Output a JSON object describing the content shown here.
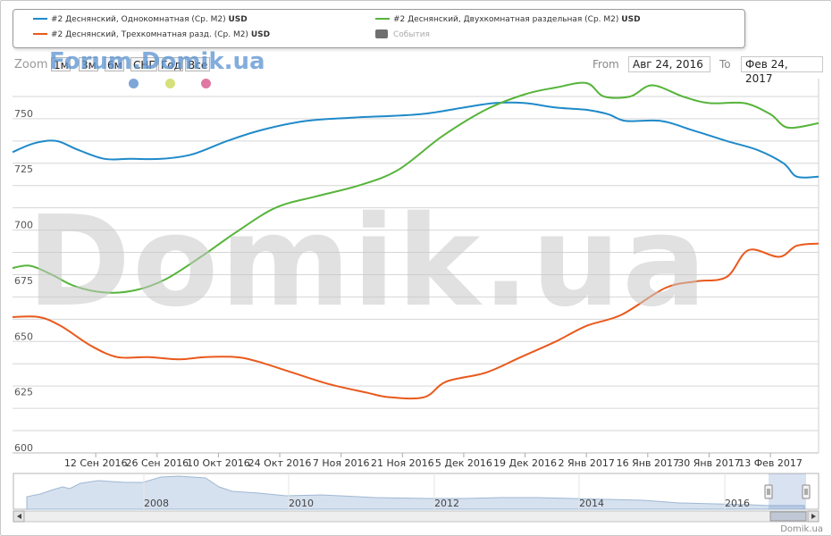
{
  "legend": {
    "items": [
      {
        "label": "#2 Деснянский, Однокомнатная (Ср. М2)",
        "unit": "USD",
        "color": "#1f8ac9"
      },
      {
        "label": "#2 Деснянский, Двухкомнатная раздельная (Ср. М2)",
        "unit": "USD",
        "color": "#56b43a"
      },
      {
        "label": "#2 Деснянский, Трехкомнатная разд. (Ср. М2)",
        "unit": "USD",
        "color": "#e9591c"
      },
      {
        "label": "События",
        "unit": "",
        "color": "#6f6f6f"
      }
    ]
  },
  "zoom": {
    "label": "Zoom",
    "buttons": [
      "1м",
      "3м",
      "6м",
      "СНГ",
      "Год",
      "Все"
    ]
  },
  "range": {
    "from_label": "From",
    "from_value": "Авг 24, 2016",
    "to_label": "To",
    "to_value": "Фев 24, 2017"
  },
  "watermarks": {
    "top": "Forum.Domik.ua",
    "big": "Domik.ua"
  },
  "events": {
    "dot_colors": [
      "#7ea6d6",
      "#d6e07a",
      "#e078a2"
    ]
  },
  "credit": "Domik.ua",
  "chart_data": {
    "type": "line",
    "title": "",
    "xlabel": "",
    "ylabel": "",
    "ylim": [
      600,
      768
    ],
    "yticks": [
      600,
      625,
      650,
      675,
      700,
      725,
      750
    ],
    "grid": true,
    "legend_position": "top",
    "x_range": [
      "2016-08-24",
      "2017-02-24"
    ],
    "x_ticks": [
      {
        "date": "2016-09-12",
        "label": "12 Сен 2016"
      },
      {
        "date": "2016-09-26",
        "label": "26 Сен 2016"
      },
      {
        "date": "2016-10-10",
        "label": "10 Окт 2016"
      },
      {
        "date": "2016-10-24",
        "label": "24 Окт 2016"
      },
      {
        "date": "2016-11-07",
        "label": "7 Ноя 2016"
      },
      {
        "date": "2016-11-21",
        "label": "21 Ноя 2016"
      },
      {
        "date": "2016-12-05",
        "label": "5 Дек 2016"
      },
      {
        "date": "2016-12-19",
        "label": "19 Дек 2016"
      },
      {
        "date": "2017-01-02",
        "label": "2 Янв 2017"
      },
      {
        "date": "2017-01-16",
        "label": "16 Янв 2017"
      },
      {
        "date": "2017-01-30",
        "label": "30 Янв 2017"
      },
      {
        "date": "2017-02-13",
        "label": "13 Фев 2017"
      }
    ],
    "series": [
      {
        "name": "#2 Деснянский, Однокомнатная (Ср. М2)",
        "color": "#1f8ac9",
        "points": [
          [
            "2016-08-24",
            735
          ],
          [
            "2016-08-29",
            739
          ],
          [
            "2016-09-03",
            740
          ],
          [
            "2016-09-08",
            736
          ],
          [
            "2016-09-14",
            732
          ],
          [
            "2016-09-20",
            732
          ],
          [
            "2016-09-27",
            732
          ],
          [
            "2016-10-04",
            734
          ],
          [
            "2016-10-12",
            740
          ],
          [
            "2016-10-20",
            745
          ],
          [
            "2016-10-30",
            749
          ],
          [
            "2016-11-10",
            750.5
          ],
          [
            "2016-11-25",
            752
          ],
          [
            "2016-12-05",
            755
          ],
          [
            "2016-12-12",
            757
          ],
          [
            "2016-12-19",
            757
          ],
          [
            "2016-12-26",
            755
          ],
          [
            "2017-01-02",
            754
          ],
          [
            "2017-01-07",
            752
          ],
          [
            "2017-01-11",
            749
          ],
          [
            "2017-01-19",
            749
          ],
          [
            "2017-01-26",
            745
          ],
          [
            "2017-02-03",
            740
          ],
          [
            "2017-02-10",
            736
          ],
          [
            "2017-02-16",
            730
          ],
          [
            "2017-02-19",
            724
          ],
          [
            "2017-02-24",
            724
          ]
        ]
      },
      {
        "name": "#2 Деснянский, Двухкомнатная раздельная (Ср. М2)",
        "color": "#56b43a",
        "points": [
          [
            "2016-08-24",
            683
          ],
          [
            "2016-08-28",
            684
          ],
          [
            "2016-09-02",
            680
          ],
          [
            "2016-09-07",
            675
          ],
          [
            "2016-09-14",
            672
          ],
          [
            "2016-09-21",
            673
          ],
          [
            "2016-09-28",
            678
          ],
          [
            "2016-10-06",
            688
          ],
          [
            "2016-10-14",
            699
          ],
          [
            "2016-10-23",
            710
          ],
          [
            "2016-11-01",
            715
          ],
          [
            "2016-11-11",
            720
          ],
          [
            "2016-11-20",
            727
          ],
          [
            "2016-11-30",
            742
          ],
          [
            "2016-12-10",
            754
          ],
          [
            "2016-12-19",
            761
          ],
          [
            "2016-12-26",
            764
          ],
          [
            "2017-01-02",
            766
          ],
          [
            "2017-01-06",
            760
          ],
          [
            "2017-01-12",
            760
          ],
          [
            "2017-01-17",
            765
          ],
          [
            "2017-01-24",
            760
          ],
          [
            "2017-01-30",
            757
          ],
          [
            "2017-02-07",
            757
          ],
          [
            "2017-02-13",
            752
          ],
          [
            "2017-02-17",
            746
          ],
          [
            "2017-02-24",
            748
          ]
        ]
      },
      {
        "name": "#2 Деснянский, Трехкомнатная разд. (Ср. М2)",
        "color": "#e9591c",
        "points": [
          [
            "2016-08-24",
            661
          ],
          [
            "2016-08-30",
            661
          ],
          [
            "2016-09-04",
            657
          ],
          [
            "2016-09-11",
            648
          ],
          [
            "2016-09-17",
            643
          ],
          [
            "2016-09-24",
            643
          ],
          [
            "2016-10-01",
            642
          ],
          [
            "2016-10-07",
            643
          ],
          [
            "2016-10-14",
            643
          ],
          [
            "2016-10-19",
            641
          ],
          [
            "2016-10-27",
            636
          ],
          [
            "2016-11-04",
            631
          ],
          [
            "2016-11-13",
            627
          ],
          [
            "2016-11-18",
            625
          ],
          [
            "2016-11-26",
            625
          ],
          [
            "2016-12-01",
            632
          ],
          [
            "2016-12-10",
            636
          ],
          [
            "2016-12-18",
            643
          ],
          [
            "2016-12-26",
            650
          ],
          [
            "2017-01-02",
            657
          ],
          [
            "2017-01-10",
            662
          ],
          [
            "2017-01-20",
            674
          ],
          [
            "2017-01-27",
            677
          ],
          [
            "2017-02-03",
            679
          ],
          [
            "2017-02-08",
            691
          ],
          [
            "2017-02-15",
            688
          ],
          [
            "2017-02-19",
            693
          ],
          [
            "2017-02-24",
            694
          ]
        ]
      }
    ],
    "navigator": {
      "year_labels": [
        "2008",
        "2010",
        "2012",
        "2014",
        "2016"
      ]
    }
  }
}
